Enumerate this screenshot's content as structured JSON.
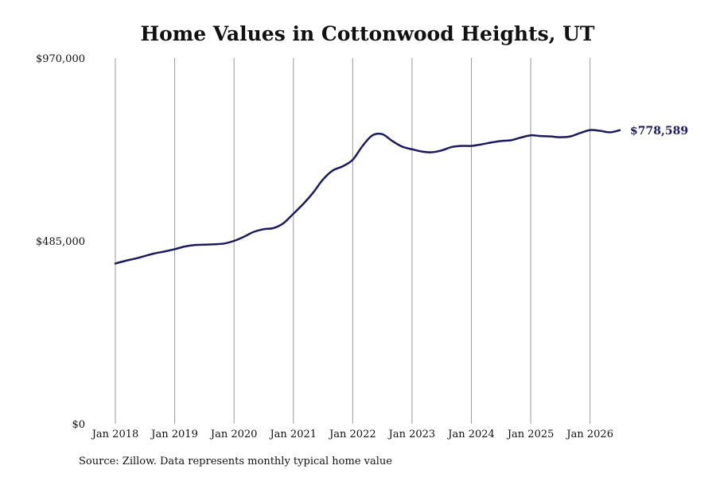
{
  "chart_data": {
    "type": "line",
    "title": "Home Values in Cottonwood Heights, UT",
    "xlabel": "",
    "ylabel": "",
    "ylim": [
      0,
      970000
    ],
    "y_ticks": [
      0,
      485000,
      970000
    ],
    "y_tick_labels": [
      "$0",
      "$485,000",
      "$970,000"
    ],
    "x_range": [
      "2018-01",
      "2026-07"
    ],
    "x_tick_labels": [
      "Jan 2018",
      "Jan 2019",
      "Jan 2020",
      "Jan 2021",
      "Jan 2022",
      "Jan 2023",
      "Jan 2024",
      "Jan 2025",
      "Jan 2026"
    ],
    "grid": "vertical",
    "line_color": "#1a1a5e",
    "end_label": "$778,589",
    "series": [
      {
        "name": "",
        "points": [
          [
            "2018-01",
            425000
          ],
          [
            "2018-03",
            432000
          ],
          [
            "2018-05",
            438000
          ],
          [
            "2018-07",
            445000
          ],
          [
            "2018-09",
            452000
          ],
          [
            "2018-11",
            457000
          ],
          [
            "2019-01",
            463000
          ],
          [
            "2019-03",
            470000
          ],
          [
            "2019-05",
            474000
          ],
          [
            "2019-07",
            475000
          ],
          [
            "2019-09",
            476000
          ],
          [
            "2019-11",
            478000
          ],
          [
            "2020-01",
            485000
          ],
          [
            "2020-03",
            496000
          ],
          [
            "2020-05",
            509000
          ],
          [
            "2020-07",
            516000
          ],
          [
            "2020-09",
            519000
          ],
          [
            "2020-11",
            532000
          ],
          [
            "2021-01",
            557000
          ],
          [
            "2021-03",
            583000
          ],
          [
            "2021-05",
            613000
          ],
          [
            "2021-07",
            648000
          ],
          [
            "2021-09",
            672000
          ],
          [
            "2021-11",
            683000
          ],
          [
            "2022-01",
            700000
          ],
          [
            "2022-03",
            737000
          ],
          [
            "2022-05",
            765000
          ],
          [
            "2022-07",
            768000
          ],
          [
            "2022-09",
            750000
          ],
          [
            "2022-11",
            735000
          ],
          [
            "2023-01",
            728000
          ],
          [
            "2023-03",
            722000
          ],
          [
            "2023-05",
            720000
          ],
          [
            "2023-07",
            725000
          ],
          [
            "2023-09",
            734000
          ],
          [
            "2023-11",
            737000
          ],
          [
            "2024-01",
            737000
          ],
          [
            "2024-03",
            741000
          ],
          [
            "2024-05",
            746000
          ],
          [
            "2024-07",
            750000
          ],
          [
            "2024-09",
            752000
          ],
          [
            "2024-11",
            759000
          ],
          [
            "2025-01",
            765000
          ],
          [
            "2025-03",
            763000
          ],
          [
            "2025-05",
            762000
          ],
          [
            "2025-07",
            760000
          ],
          [
            "2025-09",
            762000
          ],
          [
            "2025-11",
            771000
          ],
          [
            "2026-01",
            779000
          ],
          [
            "2026-03",
            777000
          ],
          [
            "2026-05",
            773000
          ],
          [
            "2026-07",
            778589
          ]
        ]
      }
    ]
  },
  "source_note": "Source: Zillow. Data represents monthly typical home value"
}
